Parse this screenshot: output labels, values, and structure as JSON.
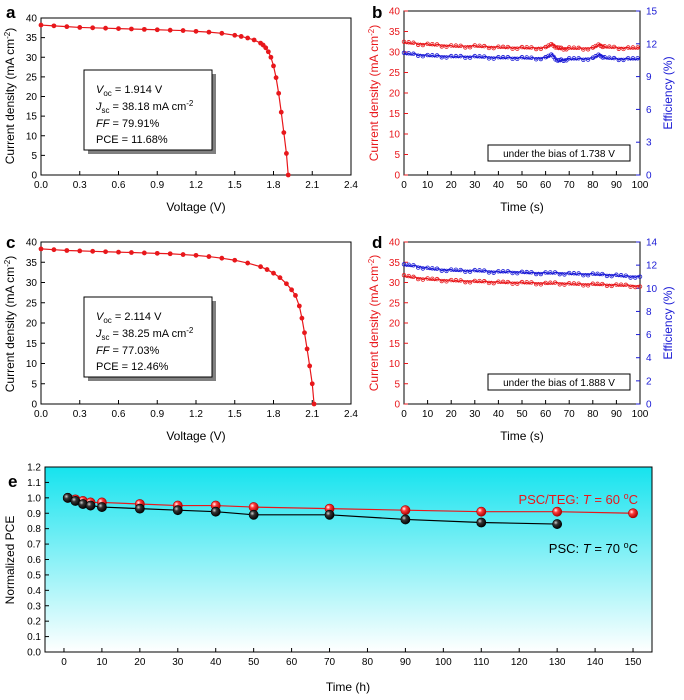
{
  "panels": {
    "a": {
      "letter": "a",
      "xlabel": "Voltage (V)",
      "ylabel": "Current density (mA cm",
      "ylabel_sup": "-2",
      "ylabel_end": ")",
      "box": {
        "line1_italic": "V",
        "line1_sub": "oc",
        "line1_rest": " = 1.914 V",
        "line2_italic": "J",
        "line2_sub": "sc",
        "line2_rest": " = 38.18 mA cm",
        "line2_sup": "-2",
        "line3_italic": "FF",
        "line3_rest": " = 79.91%",
        "line4": "PCE = 11.68%"
      }
    },
    "b": {
      "letter": "b",
      "xlabel": "Time (s)",
      "ylabel_left": "Current density (mA cm",
      "ylabel_left_sup": "-2",
      "ylabel_left_end": ")",
      "ylabel_right": "Efficiency (%)",
      "bias_label": "under the bias of 1.738 V"
    },
    "c": {
      "letter": "c",
      "xlabel": "Voltage (V)",
      "ylabel": "Current density (mA cm",
      "ylabel_sup": "-2",
      "ylabel_end": ")",
      "box": {
        "line1_italic": "V",
        "line1_sub": "oc",
        "line1_rest": " = 2.114 V",
        "line2_italic": "J",
        "line2_sub": "sc",
        "line2_rest": " = 38.25 mA cm",
        "line2_sup": "-2",
        "line3_italic": "FF",
        "line3_rest": " = 77.03%",
        "line4": "PCE = 12.46%"
      }
    },
    "d": {
      "letter": "d",
      "xlabel": "Time (s)",
      "ylabel_left": "Current density (mA cm",
      "ylabel_left_sup": "-2",
      "ylabel_left_end": ")",
      "ylabel_right": "Efficiency (%)",
      "bias_label": "under the bias of 1.888 V"
    },
    "e": {
      "letter": "e",
      "xlabel": "Time (h)",
      "ylabel": "Normalized PCE",
      "label_teg_pre": "PSC/TEG: ",
      "label_teg_italic": "T",
      "label_teg_post": " = 60 ",
      "label_teg_deg": "o",
      "label_teg_unit": "C",
      "label_psc_pre": "PSC: ",
      "label_psc_italic": "T",
      "label_psc_post": " = 70 ",
      "label_psc_deg": "o",
      "label_psc_unit": "C"
    }
  },
  "colors": {
    "red": "#e8171b",
    "blue": "#1a1ad6",
    "black": "#000000",
    "cyan_top": "#16e3ee",
    "cyan_bottom": "#ffffff"
  },
  "chart_data": [
    {
      "panel": "a",
      "type": "line",
      "xlim": [
        0,
        2.4
      ],
      "ylim": [
        0,
        40
      ],
      "x_ticks": [
        0.0,
        0.3,
        0.6,
        0.9,
        1.2,
        1.5,
        1.8,
        2.1,
        2.4
      ],
      "x_tick_labels": [
        "0.0",
        "0.3",
        "0.6",
        "0.9",
        "1.2",
        "1.5",
        "1.8",
        "2.1",
        "2.4"
      ],
      "y_ticks": [
        0,
        5,
        10,
        15,
        20,
        25,
        30,
        35,
        40
      ],
      "y_tick_labels": [
        "0",
        "5",
        "10",
        "15",
        "20",
        "25",
        "30",
        "35",
        "40"
      ],
      "series": [
        {
          "color": "red",
          "x": [
            0.0,
            0.1,
            0.2,
            0.3,
            0.4,
            0.5,
            0.6,
            0.7,
            0.8,
            0.9,
            1.0,
            1.1,
            1.2,
            1.3,
            1.4,
            1.5,
            1.55,
            1.6,
            1.65,
            1.7,
            1.72,
            1.74,
            1.76,
            1.78,
            1.8,
            1.82,
            1.84,
            1.86,
            1.88,
            1.9,
            1.914
          ],
          "y": [
            38.2,
            38.0,
            37.8,
            37.6,
            37.5,
            37.4,
            37.3,
            37.2,
            37.1,
            37.0,
            36.9,
            36.8,
            36.6,
            36.4,
            36.1,
            35.6,
            35.3,
            34.9,
            34.4,
            33.6,
            33.1,
            32.4,
            31.4,
            30.0,
            27.8,
            24.8,
            20.8,
            16.0,
            10.8,
            5.5,
            0.0
          ]
        }
      ]
    },
    {
      "panel": "b",
      "type": "line",
      "xlim": [
        0,
        100
      ],
      "ylim_left": [
        0,
        40
      ],
      "ylim_right": [
        0,
        15
      ],
      "x_ticks": [
        0,
        10,
        20,
        30,
        40,
        50,
        60,
        70,
        80,
        90,
        100
      ],
      "y_ticks_left": [
        0,
        5,
        10,
        15,
        20,
        25,
        30,
        35,
        40
      ],
      "y_ticks_right": [
        0,
        3,
        6,
        9,
        12,
        15
      ],
      "series": [
        {
          "color": "red",
          "axis": "left",
          "x": [
            0,
            5,
            10,
            15,
            20,
            25,
            30,
            35,
            40,
            45,
            50,
            55,
            60,
            63,
            65,
            67,
            70,
            75,
            80,
            83,
            85,
            90,
            95,
            100
          ],
          "y": [
            32.3,
            32.0,
            31.8,
            31.6,
            31.4,
            31.3,
            31.4,
            31.2,
            31.1,
            31.0,
            31.0,
            30.9,
            31.0,
            31.9,
            30.9,
            30.8,
            30.9,
            30.8,
            30.9,
            31.8,
            31.2,
            31.0,
            30.9,
            30.9
          ]
        },
        {
          "color": "blue",
          "axis": "right",
          "x": [
            0,
            5,
            10,
            15,
            20,
            25,
            30,
            35,
            40,
            45,
            50,
            55,
            60,
            63,
            65,
            67,
            70,
            75,
            80,
            83,
            85,
            90,
            95,
            100
          ],
          "y": [
            11.1,
            11.0,
            10.9,
            10.85,
            10.8,
            10.8,
            10.8,
            10.75,
            10.7,
            10.7,
            10.7,
            10.65,
            10.7,
            11.0,
            10.4,
            10.5,
            10.6,
            10.6,
            10.65,
            11.0,
            10.7,
            10.6,
            10.6,
            10.6
          ]
        }
      ]
    },
    {
      "panel": "c",
      "type": "line",
      "xlim": [
        0,
        2.4
      ],
      "ylim": [
        0,
        40
      ],
      "x_ticks": [
        0.0,
        0.3,
        0.6,
        0.9,
        1.2,
        1.5,
        1.8,
        2.1,
        2.4
      ],
      "x_tick_labels": [
        "0.0",
        "0.3",
        "0.6",
        "0.9",
        "1.2",
        "1.5",
        "1.8",
        "2.1",
        "2.4"
      ],
      "y_ticks": [
        0,
        5,
        10,
        15,
        20,
        25,
        30,
        35,
        40
      ],
      "y_tick_labels": [
        "0",
        "5",
        "10",
        "15",
        "20",
        "25",
        "30",
        "35",
        "40"
      ],
      "series": [
        {
          "color": "red",
          "x": [
            0.0,
            0.1,
            0.2,
            0.3,
            0.4,
            0.5,
            0.6,
            0.7,
            0.8,
            0.9,
            1.0,
            1.1,
            1.2,
            1.3,
            1.4,
            1.5,
            1.6,
            1.7,
            1.75,
            1.8,
            1.85,
            1.9,
            1.94,
            1.97,
            2.0,
            2.02,
            2.04,
            2.06,
            2.08,
            2.1,
            2.114
          ],
          "y": [
            38.3,
            38.1,
            37.9,
            37.8,
            37.7,
            37.6,
            37.5,
            37.4,
            37.3,
            37.2,
            37.1,
            36.9,
            36.7,
            36.4,
            36.0,
            35.5,
            34.8,
            33.9,
            33.2,
            32.3,
            31.2,
            29.7,
            28.2,
            26.8,
            24.2,
            21.2,
            17.6,
            13.6,
            9.4,
            5.0,
            0.0
          ]
        }
      ]
    },
    {
      "panel": "d",
      "type": "line",
      "xlim": [
        0,
        100
      ],
      "ylim_left": [
        0,
        40
      ],
      "ylim_right": [
        0,
        14
      ],
      "x_ticks": [
        0,
        10,
        20,
        30,
        40,
        50,
        60,
        70,
        80,
        90,
        100
      ],
      "y_ticks_left": [
        0,
        5,
        10,
        15,
        20,
        25,
        30,
        35,
        40
      ],
      "y_ticks_right": [
        0,
        2,
        4,
        6,
        8,
        10,
        12,
        14
      ],
      "series": [
        {
          "color": "red",
          "axis": "left",
          "x": [
            0,
            5,
            10,
            15,
            20,
            25,
            30,
            35,
            40,
            45,
            50,
            55,
            60,
            65,
            70,
            75,
            80,
            85,
            90,
            95,
            100
          ],
          "y": [
            31.6,
            31.1,
            30.8,
            30.6,
            30.4,
            30.3,
            30.2,
            30.1,
            30.0,
            29.9,
            29.9,
            29.8,
            29.7,
            29.8,
            29.6,
            29.5,
            29.5,
            29.4,
            29.3,
            29.2,
            29.0
          ]
        },
        {
          "color": "blue",
          "axis": "right",
          "x": [
            0,
            5,
            10,
            15,
            20,
            25,
            30,
            35,
            40,
            45,
            50,
            55,
            60,
            65,
            70,
            75,
            80,
            85,
            90,
            95,
            100
          ],
          "y": [
            12.0,
            11.9,
            11.7,
            11.6,
            11.55,
            11.5,
            11.5,
            11.45,
            11.4,
            11.4,
            11.35,
            11.3,
            11.3,
            11.3,
            11.25,
            11.2,
            11.2,
            11.15,
            11.1,
            11.0,
            11.0
          ]
        }
      ]
    },
    {
      "panel": "e",
      "type": "line",
      "xlim": [
        -5,
        155
      ],
      "ylim": [
        0,
        1.2
      ],
      "x_ticks": [
        0,
        10,
        20,
        30,
        40,
        50,
        60,
        70,
        80,
        90,
        100,
        110,
        120,
        130,
        140,
        150
      ],
      "y_ticks": [
        0.0,
        0.1,
        0.2,
        0.3,
        0.4,
        0.5,
        0.6,
        0.7,
        0.8,
        0.9,
        1.0,
        1.1,
        1.2
      ],
      "y_tick_labels": [
        "0.0",
        "0.1",
        "0.2",
        "0.3",
        "0.4",
        "0.5",
        "0.6",
        "0.7",
        "0.8",
        "0.9",
        "1.0",
        "1.1",
        "1.2"
      ],
      "series": [
        {
          "color": "red",
          "x": [
            1,
            3,
            5,
            7,
            10,
            20,
            30,
            40,
            50,
            70,
            90,
            110,
            130,
            150
          ],
          "y": [
            1.0,
            0.99,
            0.98,
            0.97,
            0.97,
            0.96,
            0.95,
            0.95,
            0.94,
            0.93,
            0.92,
            0.91,
            0.91,
            0.9
          ]
        },
        {
          "color": "black",
          "x": [
            1,
            3,
            5,
            7,
            10,
            20,
            30,
            40,
            50,
            70,
            90,
            110,
            130
          ],
          "y": [
            1.0,
            0.98,
            0.96,
            0.95,
            0.94,
            0.93,
            0.92,
            0.91,
            0.89,
            0.89,
            0.86,
            0.84,
            0.83
          ]
        }
      ]
    }
  ]
}
